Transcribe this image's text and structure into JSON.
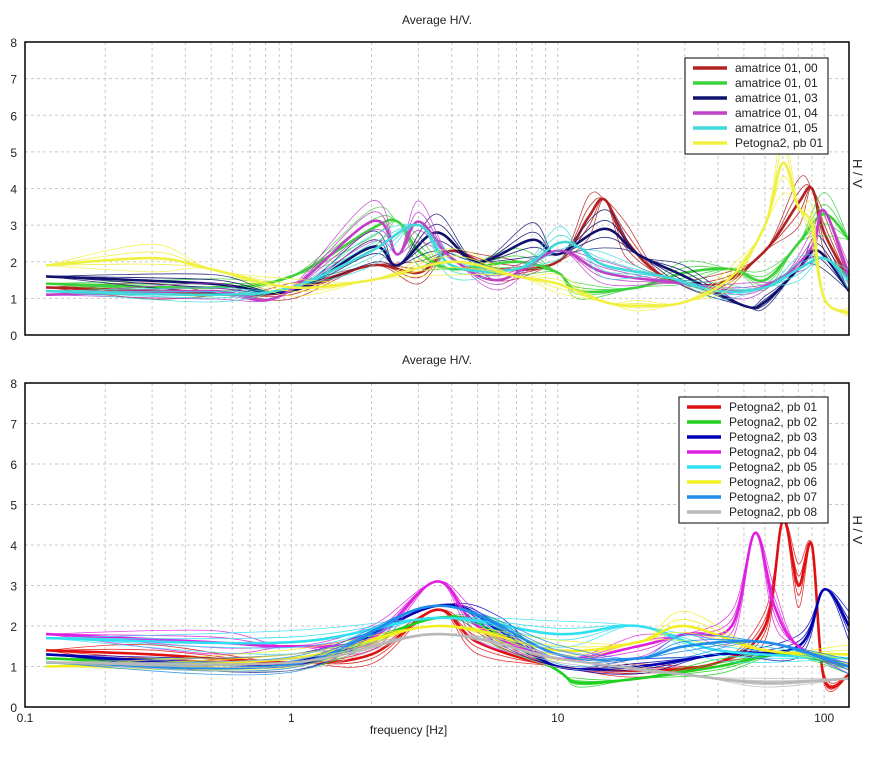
{
  "chart_data": [
    {
      "type": "line",
      "title": "Average H/V.",
      "xlabel": "",
      "ylabel": "H / V",
      "xscale": "log",
      "xlim": [
        0.1,
        124
      ],
      "ylim": [
        0,
        8
      ],
      "yticks": [
        "0",
        "1",
        "2",
        "3",
        "4",
        "5",
        "6",
        "7",
        "8"
      ],
      "grid": true,
      "legend_position": "top-right",
      "series": [
        {
          "name": "amatrice 01, 00",
          "color": "#b22222",
          "points": [
            [
              0.12,
              1.3
            ],
            [
              0.3,
              1.2
            ],
            [
              0.6,
              1.1
            ],
            [
              1,
              1.2
            ],
            [
              2,
              1.9
            ],
            [
              3,
              1.7
            ],
            [
              4,
              2.3
            ],
            [
              6,
              1.8
            ],
            [
              10,
              2.0
            ],
            [
              13,
              3.2
            ],
            [
              15,
              3.7
            ],
            [
              18,
              2.6
            ],
            [
              25,
              1.6
            ],
            [
              40,
              1.4
            ],
            [
              60,
              2.3
            ],
            [
              80,
              3.6
            ],
            [
              90,
              4.0
            ],
            [
              100,
              2.8
            ],
            [
              124,
              1.5
            ]
          ]
        },
        {
          "name": "amatrice 01, 01",
          "color": "#3cd23c",
          "points": [
            [
              0.12,
              1.4
            ],
            [
              0.5,
              1.3
            ],
            [
              1,
              1.6
            ],
            [
              2,
              2.9
            ],
            [
              2.5,
              3.1
            ],
            [
              3,
              2.3
            ],
            [
              4,
              1.8
            ],
            [
              7,
              2.0
            ],
            [
              10,
              1.7
            ],
            [
              12,
              1.2
            ],
            [
              20,
              1.3
            ],
            [
              30,
              1.7
            ],
            [
              45,
              1.8
            ],
            [
              60,
              1.5
            ],
            [
              80,
              2.5
            ],
            [
              100,
              3.3
            ],
            [
              124,
              2.6
            ]
          ]
        },
        {
          "name": "amatrice 01, 03",
          "color": "#10106e",
          "points": [
            [
              0.12,
              1.6
            ],
            [
              0.5,
              1.4
            ],
            [
              1,
              1.2
            ],
            [
              2,
              2.4
            ],
            [
              2.5,
              1.9
            ],
            [
              3.5,
              2.8
            ],
            [
              5,
              2.0
            ],
            [
              8,
              2.6
            ],
            [
              10,
              2.2
            ],
            [
              15,
              2.9
            ],
            [
              20,
              2.2
            ],
            [
              30,
              1.6
            ],
            [
              50,
              0.8
            ],
            [
              60,
              0.9
            ],
            [
              80,
              1.8
            ],
            [
              95,
              2.3
            ],
            [
              124,
              1.2
            ]
          ]
        },
        {
          "name": "amatrice 01, 04",
          "color": "#c040c8",
          "points": [
            [
              0.12,
              1.1
            ],
            [
              0.5,
              1.2
            ],
            [
              0.9,
              1.05
            ],
            [
              2,
              3.1
            ],
            [
              2.5,
              2.2
            ],
            [
              3,
              3.1
            ],
            [
              4,
              2.1
            ],
            [
              6,
              1.5
            ],
            [
              10,
              2.3
            ],
            [
              15,
              1.7
            ],
            [
              30,
              1.4
            ],
            [
              50,
              1.2
            ],
            [
              70,
              1.6
            ],
            [
              90,
              2.4
            ],
            [
              100,
              3.4
            ],
            [
              124,
              1.6
            ]
          ]
        },
        {
          "name": "amatrice 01, 05",
          "color": "#40d8d8",
          "points": [
            [
              0.12,
              1.2
            ],
            [
              0.5,
              1.1
            ],
            [
              1,
              1.3
            ],
            [
              2,
              2.3
            ],
            [
              3,
              3.0
            ],
            [
              4,
              1.9
            ],
            [
              7,
              1.8
            ],
            [
              10,
              2.5
            ],
            [
              12,
              2.4
            ],
            [
              15,
              1.9
            ],
            [
              25,
              1.6
            ],
            [
              40,
              1.2
            ],
            [
              60,
              1.3
            ],
            [
              80,
              1.8
            ],
            [
              100,
              2.1
            ],
            [
              124,
              1.5
            ]
          ]
        },
        {
          "name": "Petogna2, pb 01",
          "color": "#f0f040",
          "points": [
            [
              0.12,
              1.9
            ],
            [
              0.3,
              2.1
            ],
            [
              0.5,
              1.8
            ],
            [
              1,
              1.3
            ],
            [
              2,
              1.5
            ],
            [
              4,
              2.0
            ],
            [
              7,
              1.6
            ],
            [
              10,
              1.4
            ],
            [
              15,
              0.9
            ],
            [
              20,
              0.8
            ],
            [
              30,
              0.9
            ],
            [
              45,
              1.6
            ],
            [
              60,
              3.0
            ],
            [
              70,
              4.7
            ],
            [
              80,
              3.5
            ],
            [
              90,
              3.0
            ],
            [
              100,
              1.0
            ],
            [
              124,
              0.6
            ]
          ]
        }
      ]
    },
    {
      "type": "line",
      "title": "Average H/V.",
      "xlabel": "frequency [Hz]",
      "ylabel": "H / V",
      "xscale": "log",
      "xlim": [
        0.1,
        124
      ],
      "ylim": [
        0,
        8
      ],
      "xticks": [
        "0.1",
        "1",
        "10",
        "100"
      ],
      "yticks": [
        "0",
        "1",
        "2",
        "3",
        "4",
        "5",
        "6",
        "7",
        "8"
      ],
      "grid": true,
      "legend_position": "top-right",
      "series": [
        {
          "name": "Petogna2, pb 01",
          "color": "#e01010",
          "points": [
            [
              0.12,
              1.4
            ],
            [
              0.3,
              1.3
            ],
            [
              1,
              1.1
            ],
            [
              2,
              1.3
            ],
            [
              3.5,
              2.4
            ],
            [
              5,
              1.6
            ],
            [
              10,
              1.0
            ],
            [
              20,
              0.9
            ],
            [
              40,
              1.1
            ],
            [
              60,
              2.0
            ],
            [
              70,
              4.6
            ],
            [
              80,
              3.0
            ],
            [
              90,
              4.0
            ],
            [
              100,
              0.7
            ],
            [
              124,
              0.8
            ]
          ]
        },
        {
          "name": "Petogna2, pb 02",
          "color": "#20d020",
          "points": [
            [
              0.12,
              1.2
            ],
            [
              1,
              1.1
            ],
            [
              3.5,
              2.2
            ],
            [
              6,
              1.8
            ],
            [
              10,
              0.9
            ],
            [
              12,
              0.6
            ],
            [
              20,
              0.7
            ],
            [
              40,
              1.0
            ],
            [
              70,
              1.3
            ],
            [
              124,
              1.0
            ]
          ]
        },
        {
          "name": "Petogna2, pb 03",
          "color": "#0000b0",
          "points": [
            [
              0.12,
              1.3
            ],
            [
              1,
              1.1
            ],
            [
              3.5,
              2.5
            ],
            [
              6,
              1.9
            ],
            [
              10,
              1.0
            ],
            [
              20,
              1.0
            ],
            [
              40,
              1.3
            ],
            [
              80,
              1.5
            ],
            [
              100,
              2.9
            ],
            [
              124,
              2.0
            ]
          ]
        },
        {
          "name": "Petogna2, pb 04",
          "color": "#e020e0",
          "points": [
            [
              0.12,
              1.8
            ],
            [
              0.5,
              1.6
            ],
            [
              1,
              1.5
            ],
            [
              2,
              1.7
            ],
            [
              3.5,
              3.1
            ],
            [
              5,
              2.0
            ],
            [
              10,
              1.2
            ],
            [
              20,
              1.5
            ],
            [
              30,
              1.8
            ],
            [
              45,
              2.0
            ],
            [
              55,
              4.3
            ],
            [
              65,
              2.5
            ],
            [
              80,
              1.5
            ],
            [
              124,
              1.0
            ]
          ]
        },
        {
          "name": "Petogna2, pb 05",
          "color": "#30e0f0",
          "points": [
            [
              0.12,
              1.7
            ],
            [
              1,
              1.6
            ],
            [
              3.5,
              2.2
            ],
            [
              10,
              1.8
            ],
            [
              20,
              2.0
            ],
            [
              40,
              1.4
            ],
            [
              124,
              1.2
            ]
          ]
        },
        {
          "name": "Petogna2, pb 06",
          "color": "#f0f020",
          "points": [
            [
              0.12,
              1.0
            ],
            [
              1,
              1.2
            ],
            [
              3.5,
              2.0
            ],
            [
              10,
              1.4
            ],
            [
              20,
              1.6
            ],
            [
              30,
              2.0
            ],
            [
              60,
              1.4
            ],
            [
              124,
              1.3
            ]
          ]
        },
        {
          "name": "Petogna2, pb 07",
          "color": "#1e8ce8",
          "points": [
            [
              0.12,
              1.1
            ],
            [
              1,
              1.05
            ],
            [
              3.5,
              2.5
            ],
            [
              10,
              1.3
            ],
            [
              20,
              1.2
            ],
            [
              30,
              1.5
            ],
            [
              60,
              1.6
            ],
            [
              124,
              1.0
            ]
          ]
        },
        {
          "name": "Petogna2, pb 08",
          "color": "#b8b8b8",
          "points": [
            [
              0.12,
              1.1
            ],
            [
              1,
              1.1
            ],
            [
              3.5,
              1.8
            ],
            [
              10,
              1.2
            ],
            [
              30,
              0.8
            ],
            [
              60,
              0.6
            ],
            [
              124,
              0.7
            ]
          ]
        }
      ]
    }
  ]
}
